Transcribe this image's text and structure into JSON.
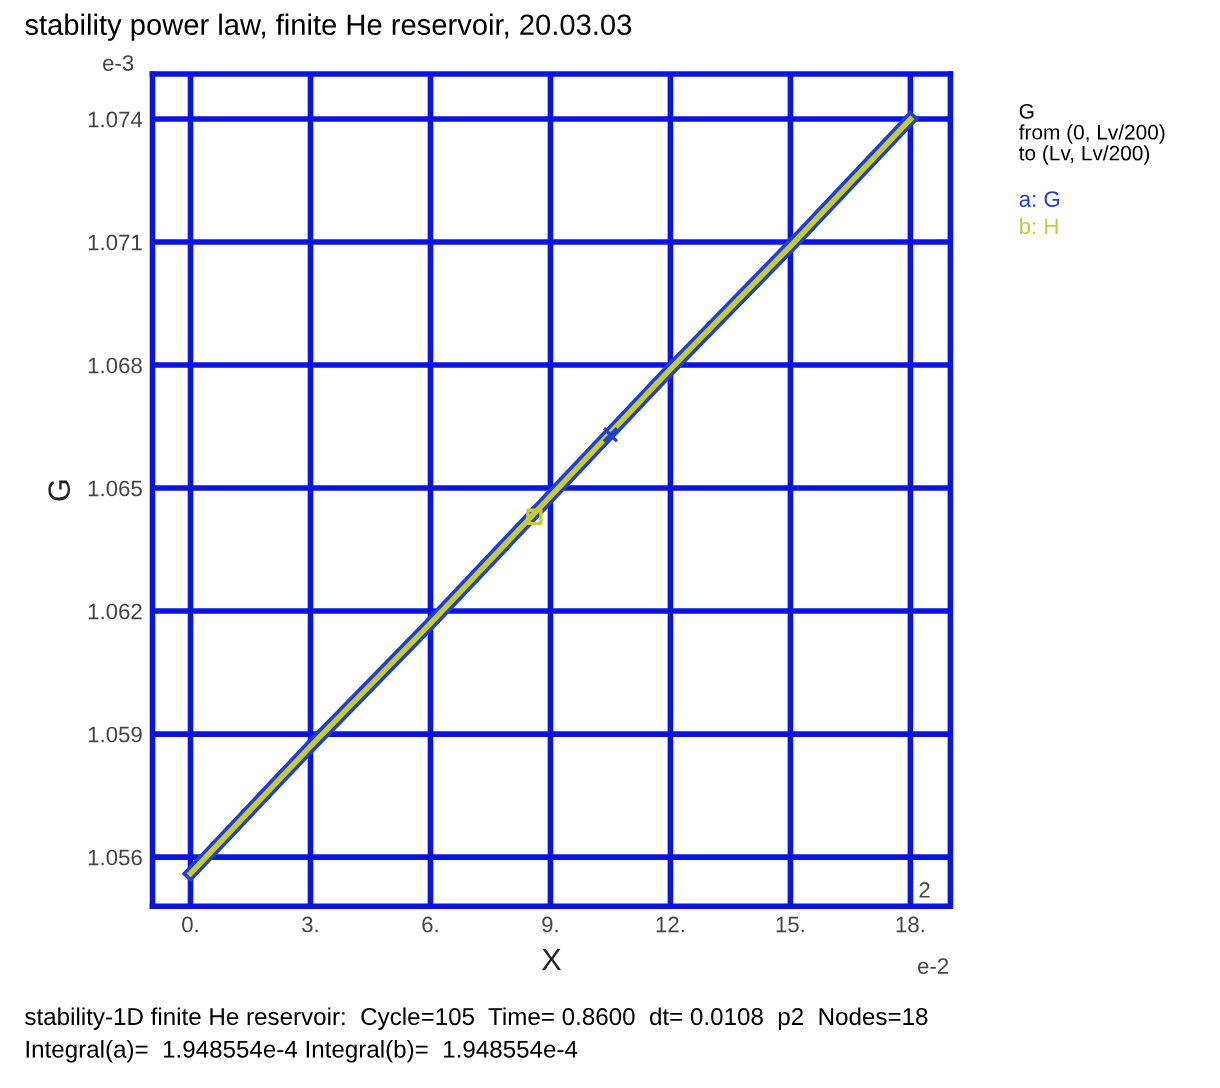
{
  "chart_data": {
    "type": "line",
    "title": "stability power law, finite He reservoir, 20.03.03",
    "xlabel": "X",
    "ylabel": "G",
    "x": [
      0,
      3,
      6,
      9,
      12,
      15,
      18
    ],
    "series": [
      {
        "name": "a: G",
        "color": "#1f3fd0",
        "values": [
          1.0556,
          1.0587,
          1.0617,
          1.0648,
          1.0679,
          1.0709,
          1.074
        ]
      },
      {
        "name": "b: H",
        "color": "#c8cc30",
        "values": [
          1.0556,
          1.0587,
          1.0617,
          1.0648,
          1.0679,
          1.0709,
          1.074
        ]
      },
      {
        "type": "scatter",
        "color": "#1f3fd0",
        "marker": "cross",
        "x": [
          10.5
        ],
        "values": [
          1.0663
        ]
      },
      {
        "type": "scatter",
        "color": "#c8cc30",
        "marker": "square",
        "x": [
          8.6
        ],
        "values": [
          1.0643
        ]
      }
    ],
    "xlim": [
      -0.95,
      19
    ],
    "ylim": [
      1.0548,
      1.0751
    ],
    "xticks": [
      {
        "value": 0,
        "label": "0."
      },
      {
        "value": 3,
        "label": "3."
      },
      {
        "value": 6,
        "label": "6."
      },
      {
        "value": 9,
        "label": "9."
      },
      {
        "value": 12,
        "label": "12."
      },
      {
        "value": 15,
        "label": "15."
      },
      {
        "value": 18,
        "label": "18."
      }
    ],
    "yticks": [
      1.056,
      1.059,
      1.062,
      1.065,
      1.068,
      1.071,
      1.074
    ],
    "grid": true,
    "legend": "right",
    "marker": "none",
    "line_style": "solid",
    "annotations": [
      "e-3",
      "e-2",
      "2",
      "G\nfrom (0, Lv/200)\nto (Lv, Lv/200)",
      "stability-1D finite He reservoir:  Cycle=105  Time= 0.8600  dt= 0.0108  p2  Nodes=18",
      "Integral(a)=  1.948554e-4 Integral(b)=  1.948554e-4"
    ]
  }
}
